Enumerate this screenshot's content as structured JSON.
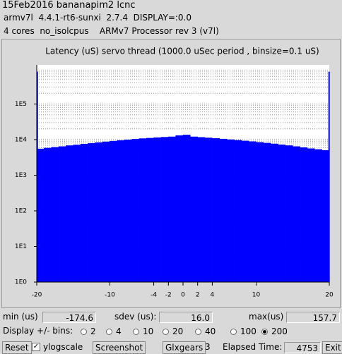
{
  "header": {
    "line1": "15Feb2016 bananapim2 lcnc",
    "line2": "armv7l  4.4.1-rt6-sunxi  2.7.4  DISPLAY=:0.0",
    "line3": "4 cores  no_isolcpus    ARMv7 Processor rev 3 (v7l)"
  },
  "chart_data": {
    "type": "histogram",
    "title": "Latency (uS) servo thread (1000.0 uSec period , binsize=0.1 uS)",
    "bins": [
      -20,
      -19.9,
      -19,
      -18,
      -17,
      -16,
      -15,
      -14,
      -13,
      -12,
      -11,
      -10,
      -9,
      -8,
      -7,
      -6,
      -5,
      -4,
      -3,
      -2,
      -1,
      0,
      1,
      2,
      3,
      4,
      5,
      6,
      7,
      8,
      9,
      10,
      11,
      12,
      13,
      14,
      15,
      16,
      17,
      18,
      19,
      19.9,
      20
    ],
    "values": [
      800000,
      5500,
      5800,
      6100,
      6400,
      6800,
      7100,
      7500,
      7900,
      8300,
      8700,
      9100,
      9500,
      9900,
      10300,
      10700,
      11000,
      11400,
      11700,
      12000,
      13000,
      13500,
      12000,
      11600,
      11200,
      10800,
      10400,
      10000,
      9600,
      9200,
      8800,
      8400,
      8000,
      7600,
      7200,
      6800,
      6400,
      6000,
      5600,
      5300,
      5000,
      800000
    ],
    "color": "#0000ff",
    "yscale": "log",
    "grid": true,
    "xlim": [
      -20,
      20
    ],
    "xticks": [
      -20,
      -10,
      -4,
      -2,
      0,
      2,
      4,
      10,
      20
    ],
    "ylim": [
      1,
      1000000
    ],
    "yticks": [
      {
        "value": 1,
        "label": "1E0"
      },
      {
        "value": 10,
        "label": "1E1"
      },
      {
        "value": 100,
        "label": "1E2"
      },
      {
        "value": 1000,
        "label": "1E3"
      },
      {
        "value": 10000,
        "label": "1E4"
      },
      {
        "value": 100000,
        "label": "1E5"
      }
    ]
  },
  "stats": {
    "min_label": "min (us)",
    "min": "-174.6",
    "sdev_label": "sdev (us):",
    "sdev": "16.0",
    "max_label": "max(us)",
    "max": "157.7"
  },
  "bins_control": {
    "label": "Display +/- bins:",
    "options": [
      2,
      4,
      10,
      20,
      40,
      100,
      200
    ],
    "selected": 200
  },
  "footer": {
    "reset": "Reset",
    "ylogscale": "ylogscale",
    "ylogscale_checked": true,
    "screenshot": "Screenshot",
    "glxgears": "Glxgears",
    "glx_count": "3",
    "elapsed_label": "Elapsed Time:",
    "elapsed": "4753",
    "exit": "Exit"
  }
}
